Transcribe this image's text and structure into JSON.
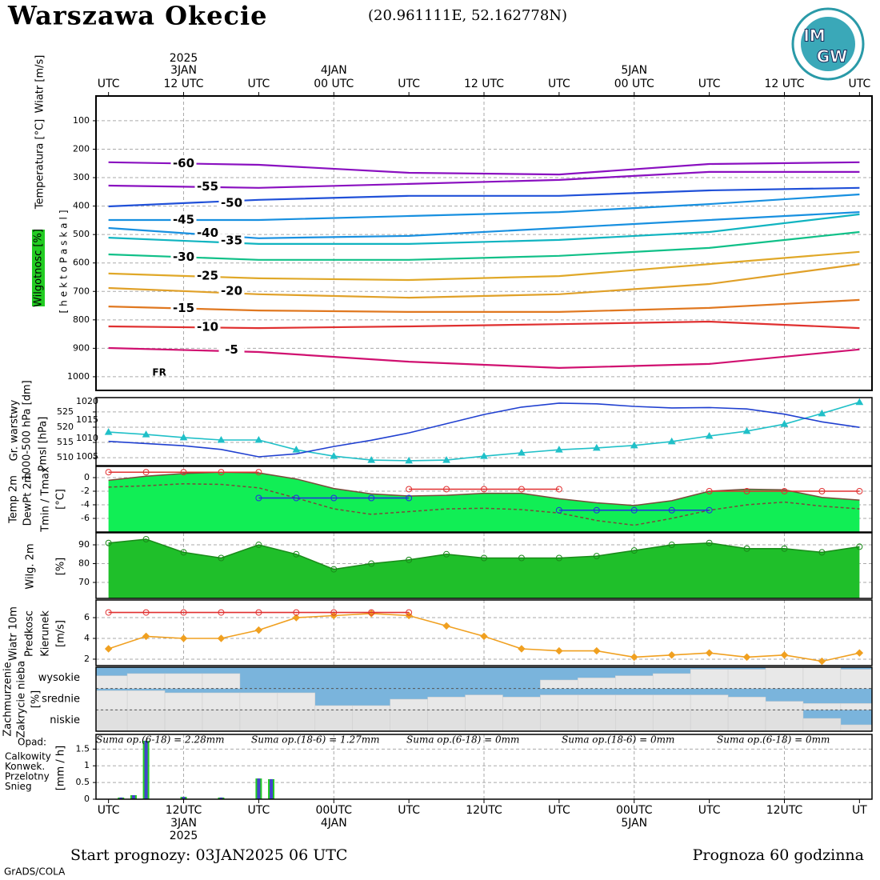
{
  "header": {
    "title": "Warszawa Okecie",
    "coords": "(20.961111E, 52.162778N)",
    "logo": [
      "IM",
      "GW"
    ]
  },
  "chart_data": [
    {
      "type": "contour",
      "y_labels": [
        "Wiatr [m/s]",
        "Temperatura [°C]",
        "Wilgotnosc [%]",
        "[hektoPaskal]"
      ],
      "xlim": [
        -1,
        61
      ],
      "xticks": [
        {
          "value": 0,
          "label": "UTC"
        },
        {
          "value": 6,
          "label": "12 UTC"
        },
        {
          "value": 12,
          "label": "UTC"
        },
        {
          "value": 18,
          "label": "00 UTC"
        },
        {
          "value": 24,
          "label": "UTC"
        },
        {
          "value": 30,
          "label": "12 UTC"
        },
        {
          "value": 36,
          "label": "UTC"
        },
        {
          "value": 42,
          "label": "00 UTC"
        },
        {
          "value": 48,
          "label": "UTC"
        },
        {
          "value": 54,
          "label": "12 UTC"
        },
        {
          "value": 60,
          "label": "UTC"
        }
      ],
      "xgrid": [
        6,
        18,
        30,
        42,
        54
      ],
      "date_labels": [
        {
          "value": 6,
          "label": "3JAN"
        },
        {
          "value": 18,
          "label": "4JAN"
        },
        {
          "value": 42,
          "label": "5JAN"
        }
      ],
      "year_label": {
        "value": 6,
        "label": "2025"
      },
      "ylim": [
        1048,
        13
      ],
      "yticks": [
        100,
        200,
        300,
        400,
        500,
        600,
        700,
        800,
        900,
        1000
      ],
      "x": [
        0,
        12,
        24,
        36,
        48,
        60
      ],
      "series": [
        {
          "name": "-60",
          "color": "#8a10c0",
          "values": [
            246,
            255,
            283,
            289,
            252,
            246
          ]
        },
        {
          "name": "-55",
          "color": "#8a10c0",
          "values": [
            328,
            336,
            322,
            308,
            280,
            280
          ]
        },
        {
          "name": "-50",
          "color": "#2050d8",
          "values": [
            401,
            378,
            364,
            364,
            345,
            336
          ]
        },
        {
          "name": "-45",
          "color": "#1890e0",
          "values": [
            449,
            449,
            435,
            421,
            393,
            359
          ]
        },
        {
          "name": "-40",
          "color": "#1890e0",
          "values": [
            477,
            513,
            505,
            477,
            449,
            421
          ]
        },
        {
          "name": "-35",
          "color": "#10b4c0",
          "values": [
            511,
            533,
            533,
            519,
            491,
            429
          ]
        },
        {
          "name": "-30",
          "color": "#10c088",
          "values": [
            570,
            589,
            589,
            575,
            547,
            491
          ]
        },
        {
          "name": "-25",
          "color": "#e0a828",
          "values": [
            637,
            654,
            660,
            646,
            604,
            561
          ]
        },
        {
          "name": "-20",
          "color": "#e0a028",
          "values": [
            688,
            710,
            722,
            710,
            674,
            604
          ]
        },
        {
          "name": "-15",
          "color": "#e07820",
          "values": [
            753,
            767,
            772,
            772,
            758,
            730
          ]
        },
        {
          "name": "-10",
          "color": "#e03030",
          "values": [
            823,
            829,
            823,
            815,
            806,
            829
          ]
        },
        {
          "name": "-5",
          "color": "#d01070",
          "values": [
            899,
            913,
            947,
            969,
            955,
            904
          ]
        }
      ],
      "annotation": "FR"
    },
    {
      "type": "line",
      "y_labels": [
        "Gr. warstwy",
        "1000-500 hPa [dm]",
        "Pmsl [hPa]"
      ],
      "xlim": [
        -1,
        61
      ],
      "xgrid": [
        6,
        18,
        30,
        42,
        54
      ],
      "ylim": [
        507.4,
        529.7
      ],
      "yticks": [
        510,
        515,
        520,
        525
      ],
      "y2lim": [
        1002.6,
        1021.1
      ],
      "y2ticks": [
        1005,
        1010,
        1015,
        1020
      ],
      "x": [
        0,
        3,
        6,
        9,
        12,
        15,
        18,
        21,
        24,
        27,
        30,
        33,
        36,
        39,
        42,
        45,
        48,
        51,
        54,
        57,
        60
      ],
      "series": [
        {
          "color": "#20c0c8",
          "marker": "triangle",
          "values": [
            518.4,
            517.6,
            516.6,
            515.8,
            515.8,
            512.6,
            510.5,
            509.2,
            509,
            509.2,
            510.5,
            511.6,
            512.6,
            513.2,
            514,
            515.3,
            517.1,
            518.7,
            521,
            524.5,
            528.2
          ]
        },
        {
          "color": "#2040d0",
          "axis": "y2",
          "values": [
            1009.2,
            1008.6,
            1008,
            1007,
            1005,
            1005.8,
            1007.8,
            1009.5,
            1011.5,
            1014,
            1016.5,
            1018.5,
            1019.6,
            1019.4,
            1018.7,
            1018.3,
            1018.4,
            1018,
            1016.6,
            1014.5,
            1013
          ]
        }
      ]
    },
    {
      "type": "area",
      "y_labels": [
        "Temp 2m",
        "DewPt 2m",
        "Tmin / Tmax",
        "[°C]"
      ],
      "xlim": [
        -1,
        61
      ],
      "xgrid": [
        6,
        18,
        30,
        42,
        54
      ],
      "ylim": [
        -8,
        1.65
      ],
      "yticks": [
        -6,
        -4,
        -2,
        0
      ],
      "x": [
        0,
        3,
        6,
        9,
        12,
        15,
        18,
        21,
        24,
        27,
        30,
        33,
        36,
        39,
        42,
        45,
        48,
        51,
        54,
        57,
        60
      ],
      "series": [
        {
          "color": "#7a4a3a",
          "fill": "#11ee55",
          "values": [
            -0.4,
            0.2,
            0.6,
            0.8,
            0.7,
            -0.2,
            -1.6,
            -2.4,
            -2.7,
            -2.6,
            -2.3,
            -2.3,
            -3.1,
            -3.7,
            -4.1,
            -3.4,
            -2,
            -1.7,
            -1.8,
            -2.9,
            -3.3
          ]
        },
        {
          "color": "#7a4a3a",
          "dash": true,
          "values": [
            -1.4,
            -1.2,
            -0.9,
            -1,
            -1.5,
            -3,
            -4.6,
            -5.4,
            -5,
            -4.6,
            -4.5,
            -4.7,
            -5.2,
            -6.3,
            -7,
            -6,
            -4.8,
            -4,
            -3.6,
            -4.2,
            -4.6
          ]
        },
        {
          "color": "#e03030",
          "marker": "circle",
          "values": [
            0.8,
            0.8,
            0.8,
            0.8,
            0.8,
            null,
            null,
            null,
            -1.7,
            -1.7,
            -1.7,
            -1.7,
            -1.7,
            null,
            null,
            null,
            -2,
            -2,
            -2,
            -2,
            -2
          ]
        },
        {
          "color": "#2030e0",
          "marker": "circle",
          "values": [
            null,
            null,
            null,
            null,
            -3,
            -3,
            -3,
            -3,
            -3,
            null,
            null,
            null,
            -4.8,
            -4.8,
            -4.8,
            -4.8,
            -4.8,
            null,
            null,
            null,
            null
          ]
        }
      ]
    },
    {
      "type": "area",
      "y_labels": [
        "Wilg. 2m",
        "[%]"
      ],
      "xlim": [
        -1,
        61
      ],
      "xgrid": [
        6,
        18,
        30,
        42,
        54
      ],
      "ylim": [
        61.5,
        96.4
      ],
      "yticks": [
        70,
        80,
        90
      ],
      "x": [
        0,
        3,
        6,
        9,
        12,
        15,
        18,
        21,
        24,
        27,
        30,
        33,
        36,
        39,
        42,
        45,
        48,
        51,
        54,
        57,
        60
      ],
      "series": [
        {
          "color": "#1a8a1a",
          "fill": "#1fbf2a",
          "marker": "circle",
          "values": [
            91,
            93,
            86,
            83,
            90,
            85,
            77,
            80,
            82,
            85,
            83,
            83,
            83,
            84,
            87,
            90,
            91,
            88,
            88,
            86,
            89
          ]
        }
      ]
    },
    {
      "type": "line",
      "y_labels": [
        "Wiatr 10m",
        "Predkosc",
        "Kierunek",
        "[m/s]"
      ],
      "xlim": [
        -1,
        61
      ],
      "xgrid": [
        6,
        18,
        30,
        42,
        54
      ],
      "ylim": [
        1.38,
        7.7
      ],
      "yticks": [
        2,
        4,
        6
      ],
      "x": [
        0,
        3,
        6,
        9,
        12,
        15,
        18,
        21,
        24,
        27,
        30,
        33,
        36,
        39,
        42,
        45,
        48,
        51,
        54,
        57,
        60
      ],
      "series": [
        {
          "color": "#f0a020",
          "marker": "diamond",
          "values": [
            3,
            4.2,
            4,
            4,
            4.8,
            6,
            6.2,
            6.4,
            6.2,
            5.2,
            4.2,
            3,
            2.8,
            2.8,
            2.2,
            2.4,
            2.6,
            2.2,
            2.4,
            1.8,
            2.6
          ]
        },
        {
          "color": "#e03030",
          "marker": "circle",
          "values": [
            6.5,
            6.5,
            6.5,
            6.5,
            6.5,
            6.5,
            6.5,
            6.5,
            6.5,
            null,
            null,
            null,
            null,
            null,
            null,
            null,
            null,
            null,
            null,
            null,
            null
          ]
        }
      ]
    },
    {
      "type": "cloud",
      "y_labels": [
        "Zachmurzenie",
        "Zakrycie nieba",
        "[%]"
      ],
      "xlim": [
        -1,
        61
      ],
      "ylim": [
        0,
        100
      ],
      "background": "#7ab4dc",
      "x": [
        0,
        3,
        6,
        9,
        12,
        15,
        18,
        21,
        24,
        27,
        30,
        33,
        36,
        39,
        42,
        45,
        48,
        51,
        54,
        57,
        60
      ],
      "series": [
        {
          "name": "wysokie",
          "color": "#e8e8e8",
          "values": [
            60,
            70,
            70,
            70,
            0,
            0,
            0,
            0,
            0,
            0,
            0,
            0,
            40,
            50,
            60,
            70,
            90,
            90,
            100,
            100,
            90
          ]
        },
        {
          "name": "srednie",
          "color": "#e8e8e8",
          "values": [
            90,
            90,
            80,
            80,
            80,
            80,
            20,
            20,
            50,
            60,
            70,
            60,
            70,
            70,
            70,
            70,
            70,
            60,
            40,
            30,
            30
          ]
        },
        {
          "name": "niskie",
          "color": "#e0e0e0",
          "values": [
            100,
            100,
            100,
            100,
            100,
            100,
            100,
            100,
            100,
            100,
            100,
            100,
            100,
            100,
            100,
            100,
            100,
            100,
            100,
            60,
            30
          ]
        }
      ]
    },
    {
      "type": "bar",
      "title": "Opad:",
      "y_labels": [
        "[mm / h]"
      ],
      "sums": [
        "Suma op.(6-18) = 2.28mm",
        "Suma op.(18-6) = 1.27mm",
        "Suma op.(6-18) = 0mm",
        "Suma op.(18-6) = 0mm",
        "Suma op.(6-18) = 0mm"
      ],
      "xlim": [
        -1,
        61
      ],
      "xticks": [
        {
          "value": 0,
          "label": "UTC"
        },
        {
          "value": 6,
          "label": "12UTC"
        },
        {
          "value": 12,
          "label": "UTC"
        },
        {
          "value": 18,
          "label": "00UTC"
        },
        {
          "value": 24,
          "label": "UTC"
        },
        {
          "value": 30,
          "label": "12UTC"
        },
        {
          "value": 36,
          "label": "UTC"
        },
        {
          "value": 42,
          "label": "00UTC"
        },
        {
          "value": 48,
          "label": "UTC"
        },
        {
          "value": 54,
          "label": "12UTC"
        },
        {
          "value": 60,
          "label": "UT"
        }
      ],
      "xgrid": [
        6,
        18,
        30,
        42,
        54
      ],
      "date_labels": [
        {
          "value": 6,
          "label": "3JAN"
        },
        {
          "value": 18,
          "label": "4JAN"
        },
        {
          "value": 42,
          "label": "5JAN"
        }
      ],
      "year_label": {
        "value": 6,
        "label": "2025"
      },
      "ylim": [
        0,
        1.94
      ],
      "yticks": [
        0,
        0.5,
        1,
        1.5
      ],
      "x": [
        1,
        2,
        3,
        6,
        9,
        12,
        13
      ],
      "series": [
        {
          "name": "Calkowity",
          "color": "#22cc22",
          "values": [
            0.05,
            0.12,
            1.75,
            0.07,
            0.05,
            0.62,
            0.6
          ]
        },
        {
          "name": "Konwek.",
          "color": "#ee3333",
          "values": [
            0,
            0,
            0,
            0,
            0,
            0,
            0
          ]
        },
        {
          "name": "Przelotny",
          "color": "#ee8833",
          "values": [
            0,
            0,
            0,
            0,
            0,
            0,
            0
          ]
        },
        {
          "name": "Snieg",
          "color": "#4444cc",
          "values": [
            0.05,
            0.12,
            1.75,
            0.07,
            0.05,
            0.62,
            0.6
          ]
        }
      ]
    }
  ],
  "footer": {
    "start": "Start prognozy: 03JAN2025 06 UTC",
    "length": "Prognoza 60 godzinna",
    "credit": "GrADS/COLA"
  }
}
